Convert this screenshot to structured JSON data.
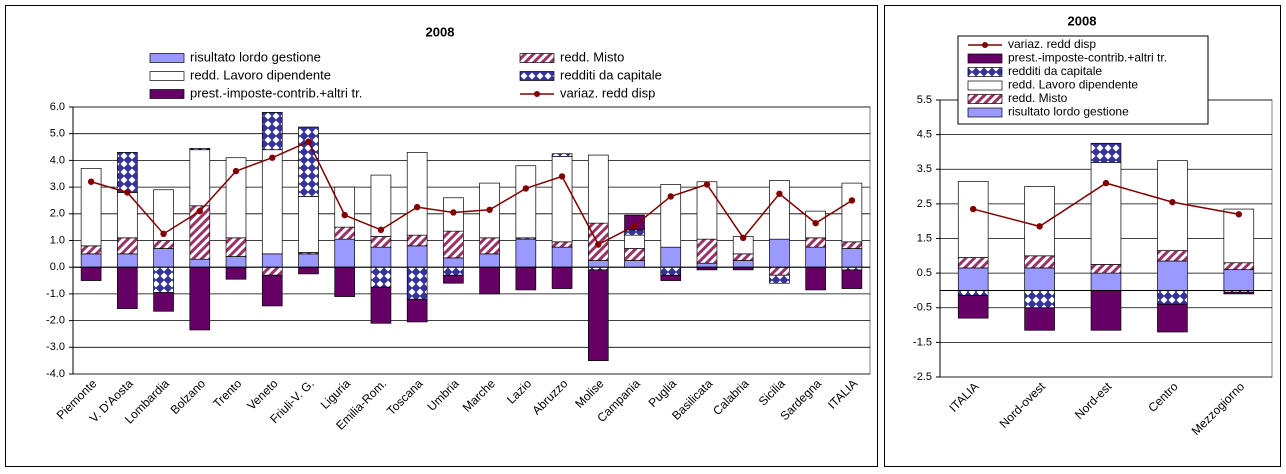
{
  "chart_data": [
    {
      "type": "bar",
      "title": "2008",
      "categories": [
        "Piemonte",
        "V. D'Aosta",
        "Lombardia",
        "Bolzano",
        "Trento",
        "Veneto",
        "Friuli-V. G.",
        "Liguria",
        "Emilia-Rom.",
        "Toscana",
        "Umbria",
        "Marche",
        "Lazio",
        "Abruzzo",
        "Molise",
        "Campania",
        "Puglia",
        "Basilicata",
        "Calabria",
        "Sicilia",
        "Sardegna",
        "ITALIA"
      ],
      "series": [
        {
          "name": "risultato lordo gestione",
          "color": "#9999ff",
          "values": [
            0.5,
            0.5,
            0.7,
            0.3,
            0.4,
            0.5,
            0.5,
            1.05,
            0.75,
            0.8,
            0.35,
            0.5,
            1.05,
            0.75,
            0.25,
            0.25,
            0.75,
            0.15,
            0.25,
            1.05,
            0.75,
            0.7
          ]
        },
        {
          "name": "redd. Misto",
          "color": "#993366",
          "pattern": "stripes",
          "values": [
            0.3,
            0.6,
            0.3,
            2.0,
            0.7,
            -0.3,
            0.05,
            0.45,
            0.4,
            0.4,
            1.0,
            0.6,
            0.05,
            0.2,
            1.4,
            0.45,
            0,
            0.9,
            0.25,
            -0.3,
            0.35,
            0.25
          ]
        },
        {
          "name": "redd. Lavoro dipendente",
          "color": "#ffffff",
          "values": [
            2.9,
            1.7,
            1.9,
            2.1,
            3.0,
            3.9,
            2.1,
            1.5,
            2.3,
            3.1,
            1.25,
            2.05,
            2.7,
            3.2,
            2.55,
            0.5,
            2.35,
            2.15,
            0.65,
            2.2,
            1.0,
            2.2
          ]
        },
        {
          "name": "redditi da capitale",
          "color": "#333399",
          "pattern": "diamonds",
          "values": [
            0,
            1.5,
            -0.95,
            0.05,
            0,
            1.4,
            2.6,
            0,
            -0.75,
            -1.2,
            -0.3,
            0,
            0,
            0.1,
            -0.1,
            0.2,
            -0.3,
            0,
            0,
            -0.3,
            0,
            -0.1
          ]
        },
        {
          "name": "prest.-imposte-contrib.+altri tr.",
          "color": "#660066",
          "values": [
            -0.5,
            -1.55,
            -0.7,
            -2.35,
            -0.45,
            -1.15,
            -0.25,
            -1.1,
            -1.35,
            -0.85,
            -0.3,
            -1.0,
            -0.85,
            -0.8,
            -3.4,
            0.55,
            -0.2,
            -0.1,
            -0.1,
            0,
            -0.85,
            -0.7
          ]
        },
        {
          "name": "variaz. redd disp",
          "type": "line",
          "color": "#800000",
          "values": [
            3.2,
            2.8,
            1.25,
            2.1,
            3.6,
            4.1,
            4.7,
            1.95,
            1.4,
            2.25,
            2.05,
            2.15,
            2.95,
            3.4,
            0.85,
            1.55,
            2.65,
            3.1,
            1.1,
            2.75,
            1.65,
            2.5
          ]
        }
      ],
      "ylim": [
        -4,
        6
      ],
      "yticks": [
        {
          "value": -4,
          "label": "-4.0"
        },
        {
          "value": -3,
          "label": "-3.0"
        },
        {
          "value": -2,
          "label": "-2.0"
        },
        {
          "value": -1,
          "label": "-1.0"
        },
        {
          "value": 0,
          "label": "0.0"
        },
        {
          "value": 1,
          "label": "1.0"
        },
        {
          "value": 2,
          "label": "2.0"
        },
        {
          "value": 3,
          "label": "3.0"
        },
        {
          "value": 4,
          "label": "4.0"
        },
        {
          "value": 5,
          "label": "5.0"
        },
        {
          "value": 6,
          "label": "6.0"
        }
      ],
      "grid": true
    },
    {
      "type": "bar",
      "title": "2008",
      "categories": [
        "ITALIA",
        "Nord-ovest",
        "Nord-est",
        "Centro",
        "Mezzogiorno"
      ],
      "series": [
        {
          "name": "risultato lordo gestione",
          "color": "#9999ff",
          "values": [
            0.65,
            0.65,
            0.5,
            0.85,
            0.6
          ]
        },
        {
          "name": "redd.  Misto",
          "color": "#993366",
          "pattern": "stripes",
          "values": [
            0.3,
            0.35,
            0.25,
            0.3,
            0.2
          ]
        },
        {
          "name": "redd. Lavoro dipendente",
          "color": "#ffffff",
          "values": [
            2.2,
            2.0,
            2.95,
            2.6,
            1.55
          ]
        },
        {
          "name": "redditi da capitale",
          "color": "#333399",
          "pattern": "diamonds",
          "values": [
            -0.15,
            -0.5,
            0.55,
            -0.4,
            -0.05
          ]
        },
        {
          "name": "prest.-imposte-contrib.+altri tr.",
          "color": "#660066",
          "values": [
            -0.65,
            -0.65,
            -1.15,
            -0.8,
            -0.05
          ]
        },
        {
          "name": "variaz. redd disp",
          "type": "line",
          "color": "#800000",
          "values": [
            2.35,
            1.85,
            3.1,
            2.55,
            2.2
          ]
        }
      ],
      "ylim": [
        -2.5,
        5.5
      ],
      "yticks": [
        -2.5,
        -1.5,
        -0.5,
        0.5,
        1.5,
        2.5,
        3.5,
        4.5,
        5.5
      ],
      "grid": true
    }
  ]
}
